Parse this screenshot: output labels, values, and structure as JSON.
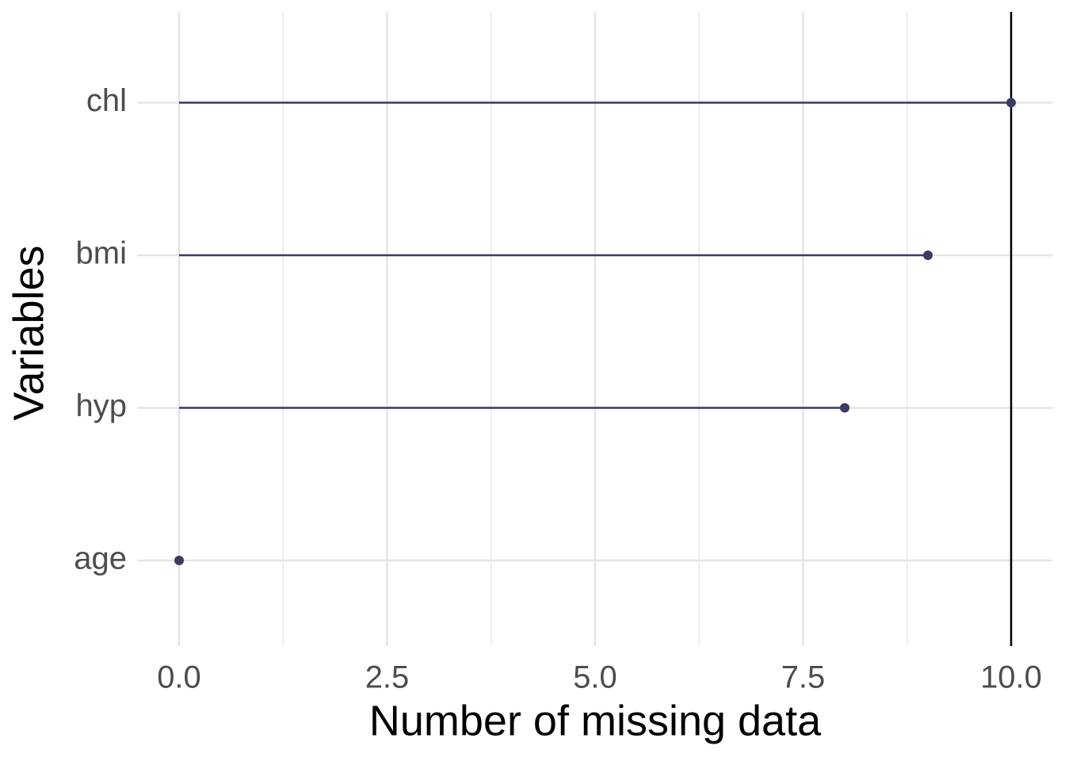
{
  "chart_data": {
    "type": "lollipop",
    "orientation": "horizontal",
    "xlabel": "Number of missing data",
    "ylabel": "Variables",
    "categories": [
      "age",
      "hyp",
      "bmi",
      "chl"
    ],
    "values": [
      0,
      8,
      9,
      10
    ],
    "color": "#3b3b66",
    "reference_line": 10,
    "xlim": [
      -0.5,
      10.5
    ],
    "xticks": [
      {
        "value": 0,
        "label": "0.0"
      },
      2.5,
      {
        "value": 5,
        "label": "5.0"
      },
      7.5,
      {
        "value": 10,
        "label": "10.0"
      }
    ],
    "grid": true
  }
}
